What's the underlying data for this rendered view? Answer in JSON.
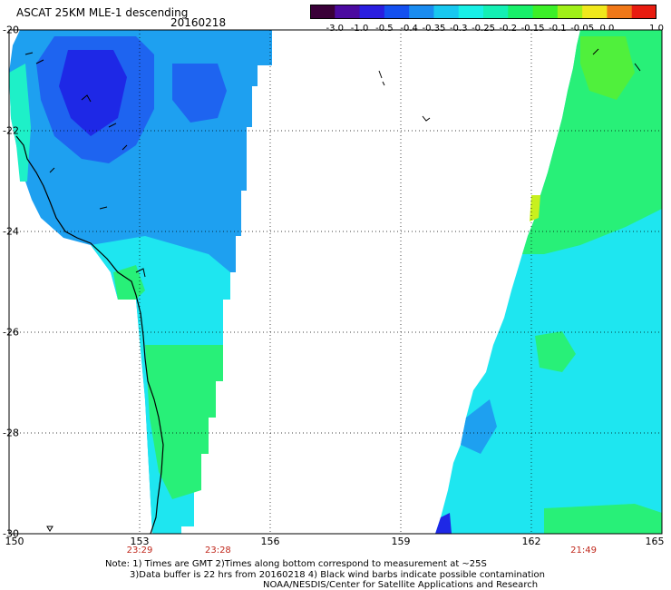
{
  "header": {
    "title": "ASCAT 25KM MLE-1 descending",
    "date": "20160218"
  },
  "colorbar": {
    "labels": [
      "-3.0",
      "-1.0",
      "-0.5",
      "-0.4",
      "-0.35",
      "-0.3",
      "-0.25",
      "-0.2",
      "-0.15",
      "-0.1",
      "-0.05",
      "0.0",
      "1.0"
    ],
    "colors": [
      "#3a0038",
      "#4b0aa0",
      "#2a1ee0",
      "#1450f0",
      "#1a8cf0",
      "#18c8f0",
      "#18f0e6",
      "#14f0b4",
      "#18f06a",
      "#3cf028",
      "#a0f018",
      "#f0e81c",
      "#f07818",
      "#e81c10"
    ]
  },
  "map": {
    "lat_labels": [
      "-20",
      "-22",
      "-24",
      "-26",
      "-28",
      "-30"
    ],
    "lon_labels": [
      "150",
      "153",
      "156",
      "159",
      "162",
      "165"
    ],
    "time_labels": [
      "23:29",
      "23:28",
      "21:49"
    ],
    "lat_range": [
      -30,
      -20
    ],
    "lon_range": [
      150,
      165
    ],
    "grid": "dotted"
  },
  "notes": {
    "line1": "Note: 1) Times are GMT 2)Times along bottom correspond to measurement at ~25S",
    "line2": "3)Data buffer is 22 hrs from 20160218 4) Black wind barbs indicate possible contamination",
    "line3": "NOAA/NESDIS/Center for Satellite Applications and Research"
  },
  "palette": {
    "deep_blue": "#1e28e6",
    "blue": "#1e64f0",
    "sky": "#1ea0f0",
    "cyan": "#1ee6f0",
    "aqua": "#1ef0c8",
    "green": "#28f078",
    "bright_green": "#50f03c",
    "yellow_green": "#c8f01e",
    "background": "#ffffff",
    "time_text": "#c0281c"
  }
}
